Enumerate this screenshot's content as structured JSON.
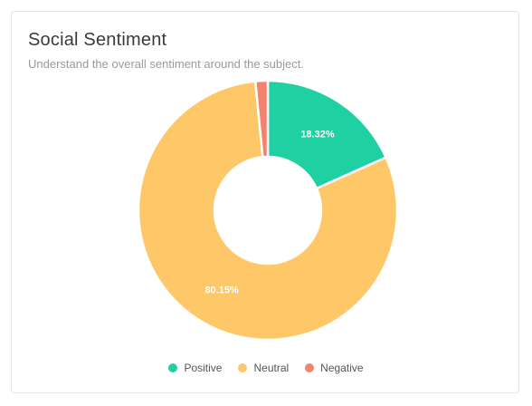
{
  "card": {
    "title": "Social Sentiment",
    "subtitle": "Understand the overall sentiment around the subject."
  },
  "chart_data": {
    "type": "pie",
    "categories": [
      "Positive",
      "Neutral",
      "Negative"
    ],
    "values": [
      18.32,
      80.15,
      1.53
    ],
    "labels": [
      "18.32%",
      "80.15%",
      ""
    ],
    "colors": [
      "#1fd1a2",
      "#fec768",
      "#f4826e"
    ],
    "title": "",
    "legend": "bottom-center",
    "donut": true
  },
  "legend": {
    "items": [
      {
        "label": "Positive",
        "color": "#1fd1a2"
      },
      {
        "label": "Neutral",
        "color": "#fec768"
      },
      {
        "label": "Negative",
        "color": "#f4826e"
      }
    ]
  }
}
